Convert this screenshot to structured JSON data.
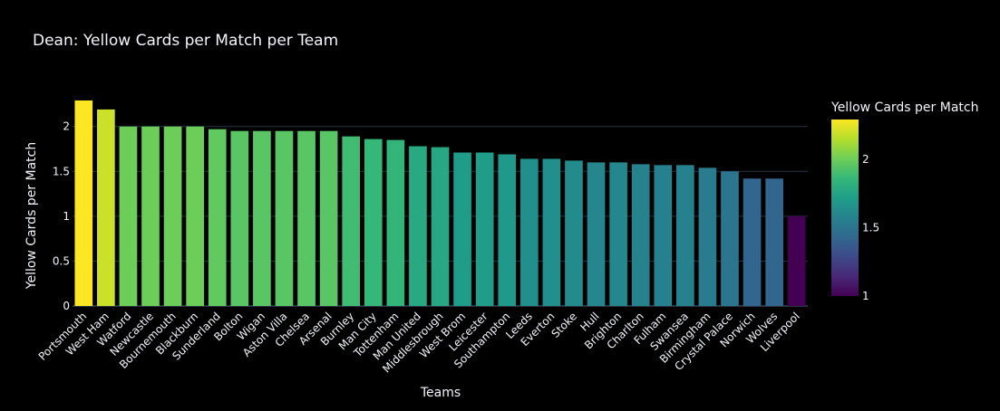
{
  "chart_data": {
    "type": "bar",
    "title": "Dean: Yellow Cards per Match per Team",
    "xlabel": "Teams",
    "ylabel": "Yellow Cards per Match",
    "ylim": [
      0,
      2.3
    ],
    "y_ticks": [
      "0",
      "0.5",
      "1",
      "1.5",
      "2"
    ],
    "categories": [
      "Portsmouth",
      "West Ham",
      "Watford",
      "Newcastle",
      "Bournemouth",
      "Blackburn",
      "Sunderland",
      "Bolton",
      "Wigan",
      "Aston Villa",
      "Chelsea",
      "Arsenal",
      "Burnley",
      "Man City",
      "Tottenham",
      "Man United",
      "Middlesbrough",
      "West Brom",
      "Leicester",
      "Southampton",
      "Leeds",
      "Everton",
      "Stoke",
      "Hull",
      "Brighton",
      "Charlton",
      "Fulham",
      "Swansea",
      "Birmingham",
      "Crystal Palace",
      "Norwich",
      "Wolves",
      "Liverpool"
    ],
    "values": [
      2.29,
      2.19,
      2.0,
      2.0,
      2.0,
      2.0,
      1.97,
      1.95,
      1.95,
      1.95,
      1.95,
      1.95,
      1.89,
      1.86,
      1.85,
      1.78,
      1.77,
      1.71,
      1.71,
      1.69,
      1.64,
      1.64,
      1.62,
      1.6,
      1.6,
      1.58,
      1.57,
      1.57,
      1.54,
      1.5,
      1.42,
      1.42,
      1.0
    ],
    "grid": true,
    "colorscale": "viridis",
    "colorbar": {
      "title": "Yellow Cards per Match",
      "range": [
        1.0,
        2.29
      ],
      "ticks": [
        "1",
        "1.5",
        "2"
      ]
    },
    "colors": {
      "background": "#000000",
      "gridline": "#283442",
      "text": "#f2f5fa"
    }
  }
}
